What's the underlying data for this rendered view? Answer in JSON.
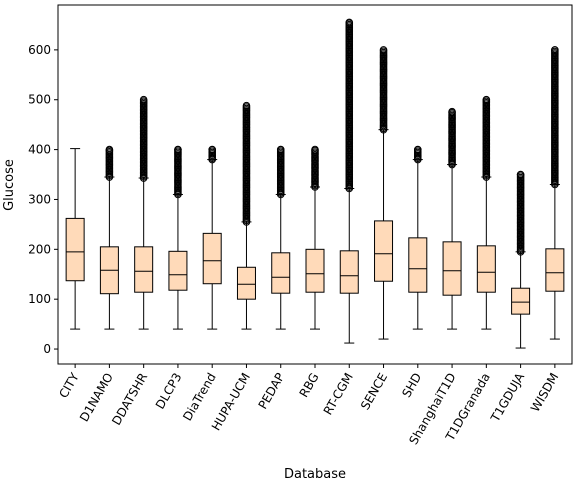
{
  "chart_data": {
    "type": "box",
    "xlabel": "Database",
    "ylabel": "Glucose",
    "ylim": [
      -30,
      690
    ],
    "yticks": [
      0,
      100,
      200,
      300,
      400,
      500,
      600
    ],
    "grid": false,
    "colors": {
      "box_fill": "#ffdab9",
      "stroke": "#000000"
    },
    "categories": [
      "CITY",
      "D1NAMO",
      "DDATSHR",
      "DLCP3",
      "DiaTrend",
      "HUPA-UCM",
      "PEDAP",
      "RBG",
      "RT-CGM",
      "SENCE",
      "SHD",
      "ShanghaiT1D",
      "T1DGranada",
      "T1GDUJA",
      "WISDM"
    ],
    "boxes": [
      {
        "min": 40,
        "q1": 137,
        "median": 195,
        "q3": 262,
        "max": 402,
        "outlier_min": null,
        "outlier_max": null
      },
      {
        "min": 40,
        "q1": 111,
        "median": 158,
        "q3": 205,
        "max": 345,
        "outlier_min": 345,
        "outlier_max": 400
      },
      {
        "min": 40,
        "q1": 114,
        "median": 156,
        "q3": 205,
        "max": 343,
        "outlier_min": 343,
        "outlier_max": 500
      },
      {
        "min": 40,
        "q1": 118,
        "median": 149,
        "q3": 196,
        "max": 310,
        "outlier_min": 310,
        "outlier_max": 400
      },
      {
        "min": 40,
        "q1": 131,
        "median": 177,
        "q3": 232,
        "max": 380,
        "outlier_min": 380,
        "outlier_max": 400
      },
      {
        "min": 40,
        "q1": 100,
        "median": 130,
        "q3": 164,
        "max": 255,
        "outlier_min": 255,
        "outlier_max": 488
      },
      {
        "min": 40,
        "q1": 112,
        "median": 144,
        "q3": 193,
        "max": 310,
        "outlier_min": 310,
        "outlier_max": 400
      },
      {
        "min": 40,
        "q1": 114,
        "median": 151,
        "q3": 200,
        "max": 325,
        "outlier_min": 325,
        "outlier_max": 400
      },
      {
        "min": 12,
        "q1": 112,
        "median": 147,
        "q3": 197,
        "max": 322,
        "outlier_min": 322,
        "outlier_max": 655
      },
      {
        "min": 20,
        "q1": 136,
        "median": 191,
        "q3": 257,
        "max": 440,
        "outlier_min": 440,
        "outlier_max": 600
      },
      {
        "min": 40,
        "q1": 114,
        "median": 161,
        "q3": 223,
        "max": 380,
        "outlier_min": 380,
        "outlier_max": 400
      },
      {
        "min": 40,
        "q1": 108,
        "median": 157,
        "q3": 215,
        "max": 370,
        "outlier_min": 370,
        "outlier_max": 476
      },
      {
        "min": 40,
        "q1": 114,
        "median": 154,
        "q3": 207,
        "max": 345,
        "outlier_min": 345,
        "outlier_max": 500
      },
      {
        "min": 2,
        "q1": 70,
        "median": 94,
        "q3": 122,
        "max": 195,
        "outlier_min": 195,
        "outlier_max": 350
      },
      {
        "min": 20,
        "q1": 116,
        "median": 153,
        "q3": 201,
        "max": 330,
        "outlier_min": 330,
        "outlier_max": 600
      }
    ]
  }
}
